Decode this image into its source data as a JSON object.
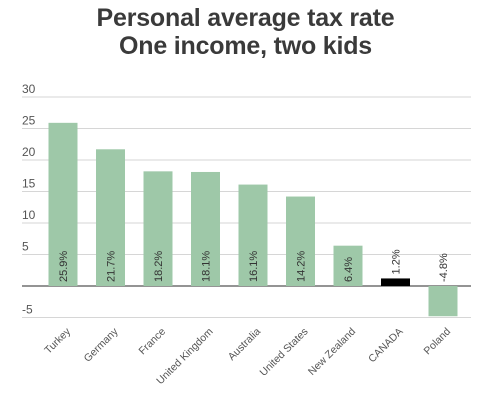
{
  "chart_data": {
    "type": "bar",
    "title": [
      "Personal average tax rate",
      "One income, two kids"
    ],
    "xlabel": "",
    "ylabel": "",
    "categories": [
      "Turkey",
      "Germany",
      "France",
      "United Kingdom",
      "Australia",
      "United States",
      "New Zealand",
      "CANADA",
      "Poland"
    ],
    "values": [
      25.9,
      21.7,
      18.2,
      18.1,
      16.1,
      14.2,
      6.4,
      1.2,
      -4.8
    ],
    "data_labels": [
      "25.9%",
      "21.7%",
      "18.2%",
      "18.1%",
      "16.1%",
      "14.2%",
      "6.4%",
      "1.2%",
      "-4.8%"
    ],
    "yticks": [
      -5,
      5,
      10,
      15,
      20,
      25,
      30
    ],
    "ylim": [
      -5,
      30
    ],
    "grid": true,
    "legend": "none",
    "colors": {
      "bar": "#9ec8a8",
      "highlight": "#000000",
      "grid": "#d6d6d6",
      "zero_line": "#555555"
    },
    "highlight_category": "CANADA"
  }
}
